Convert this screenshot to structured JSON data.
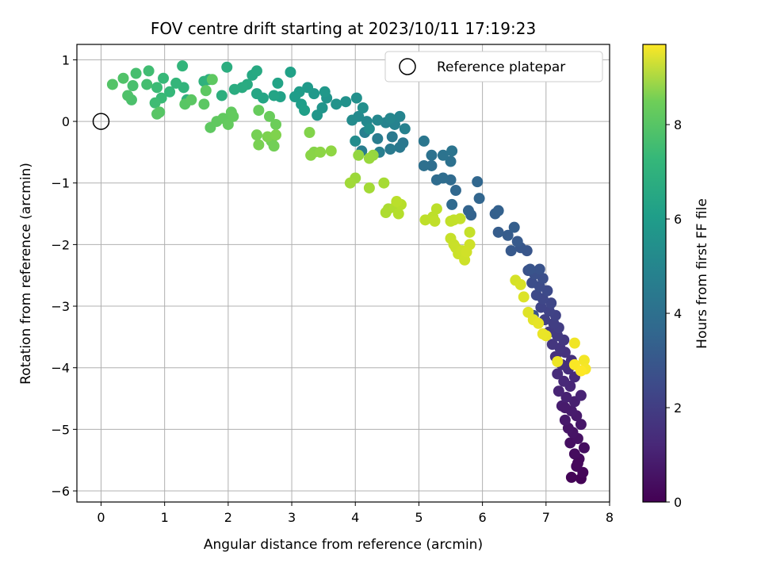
{
  "chart_data": {
    "type": "scatter",
    "title": "FOV centre drift starting at 2023/10/11 17:19:23",
    "xlabel": "Angular distance from reference (arcmin)",
    "ylabel": "Rotation from reference (arcmin)",
    "xlim": [
      -0.38,
      8.0
    ],
    "ylim": [
      -6.18,
      1.25
    ],
    "xticks": [
      0,
      1,
      2,
      3,
      4,
      5,
      6,
      7,
      8
    ],
    "yticks": [
      1,
      0,
      -1,
      -2,
      -3,
      -4,
      -5,
      -6
    ],
    "grid": true,
    "legend": {
      "position": "top-right",
      "entries": [
        "Reference platepar"
      ]
    },
    "reference_point": {
      "x": 0,
      "y": 0
    },
    "colorbar": {
      "label": "Hours from first FF file",
      "colormap": "viridis",
      "range": [
        0,
        9.7
      ],
      "ticks": [
        0,
        2,
        4,
        6,
        8
      ]
    },
    "points": [
      [
        7.55,
        -5.8,
        0.05
      ],
      [
        7.4,
        -5.78,
        0.1
      ],
      [
        7.58,
        -5.7,
        0.15
      ],
      [
        7.48,
        -5.6,
        0.2
      ],
      [
        7.52,
        -5.48,
        0.25
      ],
      [
        7.45,
        -5.4,
        0.3
      ],
      [
        7.6,
        -5.3,
        0.35
      ],
      [
        7.38,
        -5.22,
        0.4
      ],
      [
        7.5,
        -5.15,
        0.45
      ],
      [
        7.42,
        -5.05,
        0.5
      ],
      [
        7.35,
        -4.98,
        0.55
      ],
      [
        7.55,
        -4.92,
        0.6
      ],
      [
        7.3,
        -4.85,
        0.65
      ],
      [
        7.48,
        -4.78,
        0.7
      ],
      [
        7.4,
        -4.7,
        0.75
      ],
      [
        7.25,
        -4.62,
        0.8
      ],
      [
        7.45,
        -4.55,
        0.85
      ],
      [
        7.32,
        -4.48,
        0.9
      ],
      [
        7.55,
        -4.45,
        0.95
      ],
      [
        7.2,
        -4.38,
        1.0
      ],
      [
        7.38,
        -4.3,
        1.05
      ],
      [
        7.28,
        -4.22,
        1.1
      ],
      [
        7.45,
        -4.15,
        1.15
      ],
      [
        7.18,
        -4.1,
        1.2
      ],
      [
        7.35,
        -4.02,
        1.25
      ],
      [
        7.25,
        -3.95,
        1.3
      ],
      [
        7.4,
        -3.88,
        1.35
      ],
      [
        7.15,
        -3.82,
        1.4
      ],
      [
        7.3,
        -3.75,
        1.45
      ],
      [
        7.22,
        -3.68,
        1.5
      ],
      [
        7.1,
        -3.62,
        1.55
      ],
      [
        7.28,
        -3.55,
        1.6
      ],
      [
        7.18,
        -3.48,
        1.65
      ],
      [
        7.05,
        -3.42,
        1.7
      ],
      [
        7.2,
        -3.35,
        1.75
      ],
      [
        7.12,
        -3.28,
        1.8
      ],
      [
        6.98,
        -3.22,
        1.85
      ],
      [
        7.15,
        -3.15,
        1.9
      ],
      [
        7.05,
        -3.08,
        1.95
      ],
      [
        6.92,
        -3.02,
        2.0
      ],
      [
        7.08,
        -2.95,
        2.05
      ],
      [
        6.95,
        -2.88,
        2.1
      ],
      [
        6.85,
        -2.82,
        2.15
      ],
      [
        7.02,
        -2.75,
        2.2
      ],
      [
        6.9,
        -2.68,
        2.25
      ],
      [
        6.78,
        -2.62,
        2.3
      ],
      [
        6.95,
        -2.55,
        2.35
      ],
      [
        6.82,
        -2.48,
        2.4
      ],
      [
        6.72,
        -2.42,
        2.45
      ],
      [
        6.9,
        -2.4,
        2.5
      ],
      [
        6.8,
        -3.15,
        2.55
      ],
      [
        7.0,
        -3.45,
        1.58
      ],
      [
        7.3,
        -4.65,
        0.72
      ],
      [
        7.5,
        -5.55,
        0.22
      ],
      [
        6.75,
        -2.4,
        2.55
      ],
      [
        6.7,
        -2.1,
        2.6
      ],
      [
        6.6,
        -2.05,
        2.65
      ],
      [
        6.45,
        -2.1,
        2.7
      ],
      [
        6.55,
        -1.95,
        2.75
      ],
      [
        6.4,
        -1.85,
        2.8
      ],
      [
        6.25,
        -1.8,
        2.85
      ],
      [
        6.5,
        -1.72,
        2.9
      ],
      [
        6.2,
        -1.5,
        2.95
      ],
      [
        6.25,
        -1.45,
        3.0
      ],
      [
        5.82,
        -1.52,
        3.05
      ],
      [
        5.78,
        -1.45,
        3.1
      ],
      [
        5.95,
        -1.25,
        3.15
      ],
      [
        5.92,
        -0.98,
        3.2
      ],
      [
        5.58,
        -1.12,
        3.25
      ],
      [
        5.52,
        -1.35,
        3.3
      ],
      [
        5.5,
        -0.95,
        3.35
      ],
      [
        5.28,
        -0.95,
        3.4
      ],
      [
        5.38,
        -0.92,
        3.45
      ],
      [
        5.2,
        -0.72,
        3.5
      ],
      [
        5.08,
        -0.72,
        3.55
      ],
      [
        5.5,
        -0.65,
        3.6
      ],
      [
        5.2,
        -0.55,
        3.65
      ],
      [
        5.38,
        -0.55,
        3.7
      ],
      [
        5.52,
        -0.48,
        3.75
      ],
      [
        5.08,
        -0.32,
        3.8
      ],
      [
        4.75,
        -0.35,
        3.85
      ],
      [
        4.7,
        -0.42,
        3.9
      ],
      [
        4.58,
        -0.25,
        3.95
      ],
      [
        4.55,
        -0.45,
        4.0
      ],
      [
        4.35,
        -0.28,
        4.05
      ],
      [
        4.1,
        -0.48,
        4.1
      ],
      [
        4.38,
        -0.5,
        4.15
      ],
      [
        4.15,
        -0.18,
        4.2
      ],
      [
        4.78,
        -0.12,
        4.25
      ],
      [
        4.62,
        -0.05,
        4.3
      ],
      [
        4.48,
        -0.02,
        4.35
      ],
      [
        4.7,
        0.08,
        4.4
      ],
      [
        4.55,
        0.05,
        4.45
      ],
      [
        4.35,
        0.02,
        4.5
      ],
      [
        4.18,
        0.0,
        4.55
      ],
      [
        4.05,
        0.08,
        4.6
      ],
      [
        3.95,
        0.02,
        4.65
      ],
      [
        4.0,
        -0.32,
        4.7
      ],
      [
        4.22,
        -0.12,
        4.75
      ],
      [
        4.12,
        0.22,
        4.8
      ],
      [
        4.02,
        0.38,
        4.85
      ],
      [
        3.85,
        0.32,
        4.9
      ],
      [
        3.7,
        0.28,
        4.95
      ],
      [
        3.55,
        0.38,
        5.0
      ],
      [
        3.48,
        0.22,
        5.05
      ],
      [
        3.4,
        0.1,
        5.1
      ],
      [
        3.52,
        0.48,
        5.15
      ],
      [
        3.35,
        0.45,
        5.2
      ],
      [
        3.25,
        0.55,
        5.25
      ],
      [
        3.12,
        0.48,
        5.3
      ],
      [
        3.05,
        0.4,
        5.35
      ],
      [
        3.15,
        0.28,
        5.4
      ],
      [
        3.2,
        0.18,
        5.45
      ],
      [
        2.98,
        0.8,
        5.5
      ],
      [
        2.82,
        0.4,
        5.55
      ],
      [
        2.78,
        0.62,
        5.6
      ],
      [
        2.72,
        0.42,
        5.65
      ],
      [
        2.55,
        0.38,
        5.7
      ],
      [
        2.45,
        0.45,
        5.75
      ],
      [
        2.38,
        0.75,
        5.8
      ],
      [
        2.45,
        0.82,
        5.85
      ],
      [
        2.3,
        0.6,
        5.9
      ],
      [
        2.22,
        0.55,
        5.95
      ],
      [
        2.1,
        0.52,
        6.0
      ],
      [
        1.98,
        0.88,
        6.05
      ],
      [
        1.9,
        0.42,
        6.1
      ],
      [
        1.7,
        0.68,
        6.15
      ],
      [
        1.62,
        0.65,
        6.2
      ],
      [
        1.35,
        0.35,
        6.25
      ],
      [
        1.3,
        0.55,
        6.3
      ],
      [
        1.28,
        0.9,
        6.35
      ],
      [
        1.18,
        0.62,
        6.4
      ],
      [
        1.08,
        0.48,
        6.45
      ],
      [
        0.98,
        0.7,
        6.5
      ],
      [
        0.95,
        0.38,
        6.55
      ],
      [
        0.88,
        0.55,
        6.6
      ],
      [
        0.85,
        0.3,
        6.65
      ],
      [
        0.75,
        0.82,
        6.7
      ],
      [
        0.72,
        0.6,
        6.75
      ],
      [
        0.55,
        0.78,
        6.8
      ],
      [
        0.5,
        0.58,
        6.85
      ],
      [
        0.48,
        0.35,
        6.9
      ],
      [
        0.42,
        0.42,
        6.95
      ],
      [
        0.35,
        0.7,
        7.0
      ],
      [
        0.18,
        0.6,
        7.05
      ],
      [
        0.92,
        0.15,
        7.1
      ],
      [
        0.88,
        0.12,
        7.12
      ],
      [
        1.32,
        0.28,
        7.15
      ],
      [
        1.42,
        0.35,
        7.18
      ],
      [
        1.62,
        0.28,
        7.2
      ],
      [
        1.65,
        0.5,
        7.22
      ],
      [
        1.75,
        0.68,
        7.24
      ],
      [
        1.72,
        -0.1,
        7.26
      ],
      [
        1.82,
        0.0,
        7.28
      ],
      [
        1.92,
        0.05,
        7.3
      ],
      [
        2.05,
        0.15,
        7.32
      ],
      [
        2.08,
        0.08,
        7.34
      ],
      [
        2.0,
        -0.05,
        7.36
      ],
      [
        2.48,
        0.18,
        7.4
      ],
      [
        2.65,
        0.08,
        7.45
      ],
      [
        2.75,
        -0.05,
        7.5
      ],
      [
        2.68,
        -0.32,
        7.55
      ],
      [
        2.72,
        -0.4,
        7.6
      ],
      [
        2.45,
        -0.22,
        7.65
      ],
      [
        2.48,
        -0.38,
        7.7
      ],
      [
        2.62,
        -0.25,
        7.75
      ],
      [
        2.75,
        -0.22,
        7.8
      ],
      [
        3.28,
        -0.18,
        7.85
      ],
      [
        3.35,
        -0.5,
        7.9
      ],
      [
        3.3,
        -0.55,
        7.95
      ],
      [
        3.45,
        -0.5,
        8.0
      ],
      [
        3.62,
        -0.48,
        8.05
      ],
      [
        4.05,
        -0.55,
        8.1
      ],
      [
        4.28,
        -0.55,
        8.15
      ],
      [
        4.22,
        -0.6,
        8.2
      ],
      [
        4.0,
        -0.92,
        8.25
      ],
      [
        3.92,
        -1.0,
        8.3
      ],
      [
        4.22,
        -1.08,
        8.35
      ],
      [
        4.45,
        -1.0,
        8.4
      ],
      [
        4.52,
        -1.42,
        8.45
      ],
      [
        4.48,
        -1.48,
        8.5
      ],
      [
        4.62,
        -1.4,
        8.55
      ],
      [
        4.68,
        -1.5,
        8.6
      ],
      [
        4.72,
        -1.35,
        8.65
      ],
      [
        4.65,
        -1.3,
        8.7
      ],
      [
        5.28,
        -1.42,
        8.72
      ],
      [
        5.22,
        -1.55,
        8.74
      ],
      [
        5.1,
        -1.6,
        8.76
      ],
      [
        5.25,
        -1.62,
        8.78
      ],
      [
        5.5,
        -1.62,
        8.8
      ],
      [
        5.55,
        -1.6,
        8.82
      ],
      [
        5.65,
        -1.58,
        8.84
      ],
      [
        5.8,
        -1.8,
        8.86
      ],
      [
        5.5,
        -1.9,
        8.88
      ],
      [
        5.55,
        -2.0,
        8.9
      ],
      [
        5.58,
        -2.05,
        8.92
      ],
      [
        5.62,
        -2.15,
        8.94
      ],
      [
        5.68,
        -2.1,
        8.96
      ],
      [
        5.72,
        -2.25,
        8.98
      ],
      [
        5.8,
        -2.0,
        9.0
      ],
      [
        5.75,
        -2.12,
        9.02
      ],
      [
        6.52,
        -2.58,
        9.1
      ],
      [
        6.6,
        -2.65,
        9.15
      ],
      [
        6.65,
        -2.85,
        9.2
      ],
      [
        6.72,
        -3.1,
        9.25
      ],
      [
        6.8,
        -3.22,
        9.3
      ],
      [
        6.88,
        -3.28,
        9.35
      ],
      [
        7.0,
        -3.48,
        9.4
      ],
      [
        6.95,
        -3.45,
        9.42
      ],
      [
        7.18,
        -3.9,
        9.45
      ],
      [
        7.45,
        -3.6,
        9.5
      ],
      [
        7.6,
        -3.88,
        9.55
      ],
      [
        7.62,
        -4.02,
        9.6
      ],
      [
        7.45,
        -3.95,
        9.65
      ],
      [
        7.55,
        -4.05,
        9.7
      ]
    ]
  }
}
